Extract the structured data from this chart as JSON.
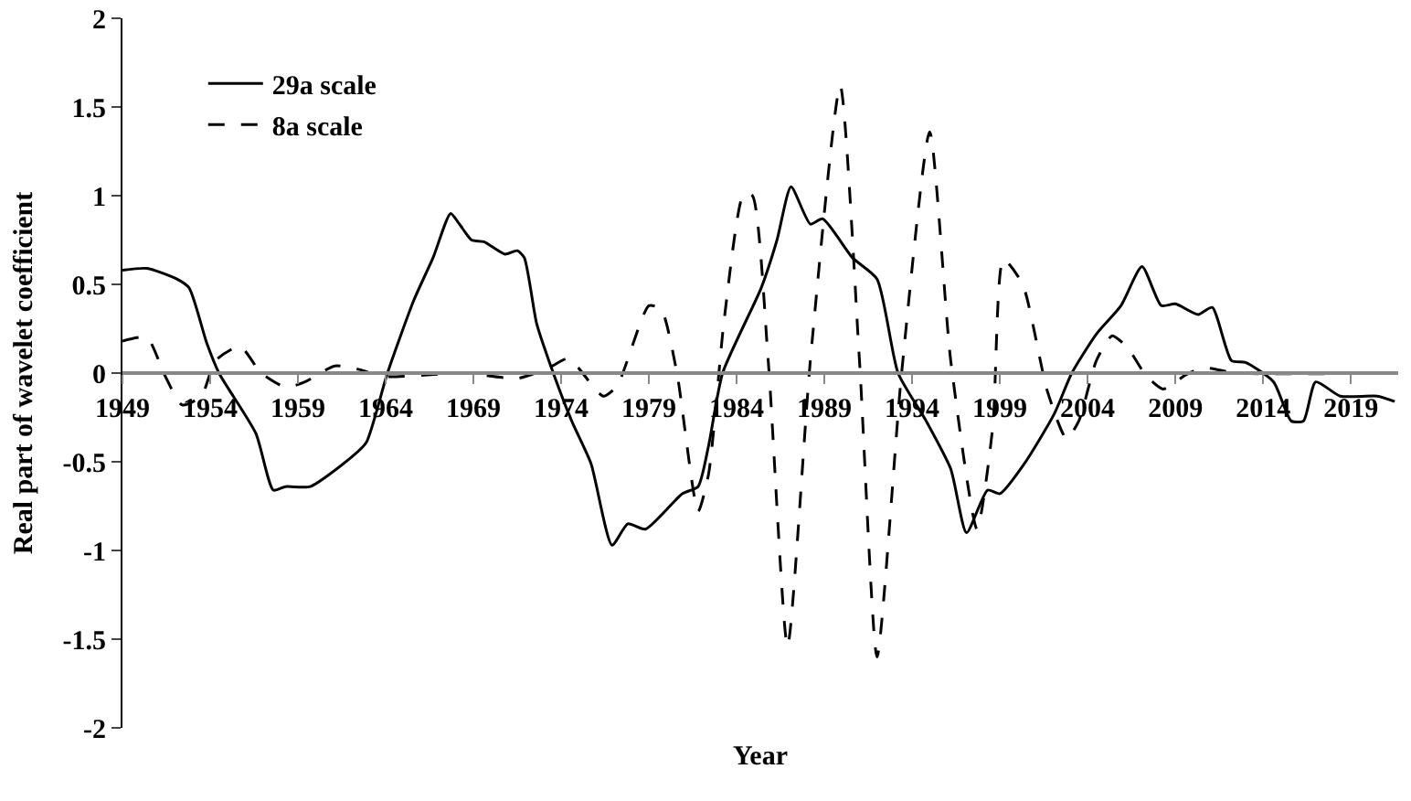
{
  "chart_data": {
    "type": "line",
    "xlabel": "Year",
    "ylabel": "Real part of wavelet coefficient",
    "xlim": [
      1949,
      2021.7
    ],
    "xticks": [
      1949,
      1954,
      1959,
      1964,
      1969,
      1974,
      1979,
      1984,
      1989,
      1994,
      1999,
      2004,
      2009,
      2014,
      2019
    ],
    "ylim": [
      -2,
      2
    ],
    "yticks": [
      -2,
      -1.5,
      -1,
      -0.5,
      0,
      0.5,
      1,
      1.5,
      2
    ],
    "grid": false,
    "legend": "top left",
    "marker": "none",
    "series": [
      {
        "name": "29a scale",
        "color": "#000000",
        "line_style": "solid",
        "x": [
          1949,
          1950.4,
          1952.1,
          1952.8,
          1953.8,
          1954.5,
          1956.6,
          1957.6,
          1958.3,
          1959.7,
          1962.1,
          1962.9,
          1964.1,
          1965.6,
          1966.7,
          1967.7,
          1968.2,
          1968.9,
          1969.6,
          1970.8,
          1971.5,
          1971.9,
          1972.6,
          1973.3,
          1974.6,
          1975.7,
          1976.9,
          1977.8,
          1978.8,
          1980.9,
          1981.8,
          1982.4,
          1983.2,
          1985.4,
          1986.3,
          1987.1,
          1988.2,
          1988.9,
          1990.6,
          1992,
          1993.2,
          1994.8,
          1996.2,
          1997.1,
          1998.3,
          1999,
          2000.4,
          2002.1,
          2003.1,
          2004.5,
          2005.9,
          2007.1,
          2008.2,
          2009,
          2010.3,
          2011.1,
          2012.2,
          2013,
          2014.6,
          2015.6,
          2016.3,
          2017,
          2018.4,
          2020.5,
          2021.5
        ],
        "values": [
          0.58,
          0.59,
          0.53,
          0.48,
          0.17,
          0,
          -0.34,
          -0.66,
          -0.64,
          -0.64,
          -0.47,
          -0.39,
          0,
          0.41,
          0.65,
          0.9,
          0.84,
          0.75,
          0.74,
          0.67,
          0.69,
          0.65,
          0.28,
          0.07,
          -0.27,
          -0.51,
          -0.97,
          -0.85,
          -0.88,
          -0.68,
          -0.64,
          -0.41,
          0,
          0.48,
          0.75,
          1.05,
          0.84,
          0.87,
          0.65,
          0.53,
          0,
          -0.27,
          -0.54,
          -0.9,
          -0.66,
          -0.68,
          -0.51,
          -0.23,
          0,
          0.22,
          0.38,
          0.6,
          0.38,
          0.39,
          0.33,
          0.37,
          0.07,
          0.06,
          -0.05,
          -0.27,
          -0.27,
          -0.05,
          -0.13,
          -0.13,
          -0.16
        ]
      },
      {
        "name": "8a scale",
        "color": "#000000",
        "line_style": "dashed",
        "x": [
          1949,
          1950.4,
          1951.4,
          1952.4,
          1953.5,
          1954.3,
          1955.7,
          1956.9,
          1958.3,
          1959.4,
          1961.1,
          1962.5,
          1963.9,
          1968.4,
          1971.5,
          1973.3,
          1974.3,
          1974.8,
          1976.4,
          1977.2,
          1979,
          1979.7,
          1980.6,
          1981.8,
          1982.4,
          1983.3,
          1984.4,
          1984.9,
          1985.8,
          1986.9,
          1988.2,
          1989.9,
          1991,
          1992,
          1993.4,
          1995,
          1996.2,
          1997.7,
          1998.6,
          1999.2,
          2000.3,
          2001.7,
          2002.8,
          2003.5,
          2004.5,
          2005.4,
          2006.3,
          2007.3,
          2008.3,
          2009.6,
          2010.6,
          2012.5,
          2021.5
        ],
        "values": [
          0.18,
          0.2,
          -0.01,
          -0.18,
          -0.13,
          0.07,
          0.15,
          0,
          -0.08,
          -0.05,
          0.04,
          0.02,
          -0.02,
          0,
          -0.03,
          0.03,
          0.08,
          0.05,
          -0.13,
          -0.07,
          0.38,
          0.36,
          0,
          -0.78,
          -0.57,
          0.31,
          1.01,
          1,
          0.07,
          -1.54,
          0.07,
          1.62,
          0.07,
          -1.6,
          0,
          1.36,
          0.07,
          -0.88,
          -0.3,
          0.64,
          0.5,
          -0.1,
          -0.37,
          -0.27,
          0.07,
          0.21,
          0.14,
          -0.01,
          -0.09,
          -0.01,
          0.03,
          0,
          0
        ]
      }
    ]
  }
}
